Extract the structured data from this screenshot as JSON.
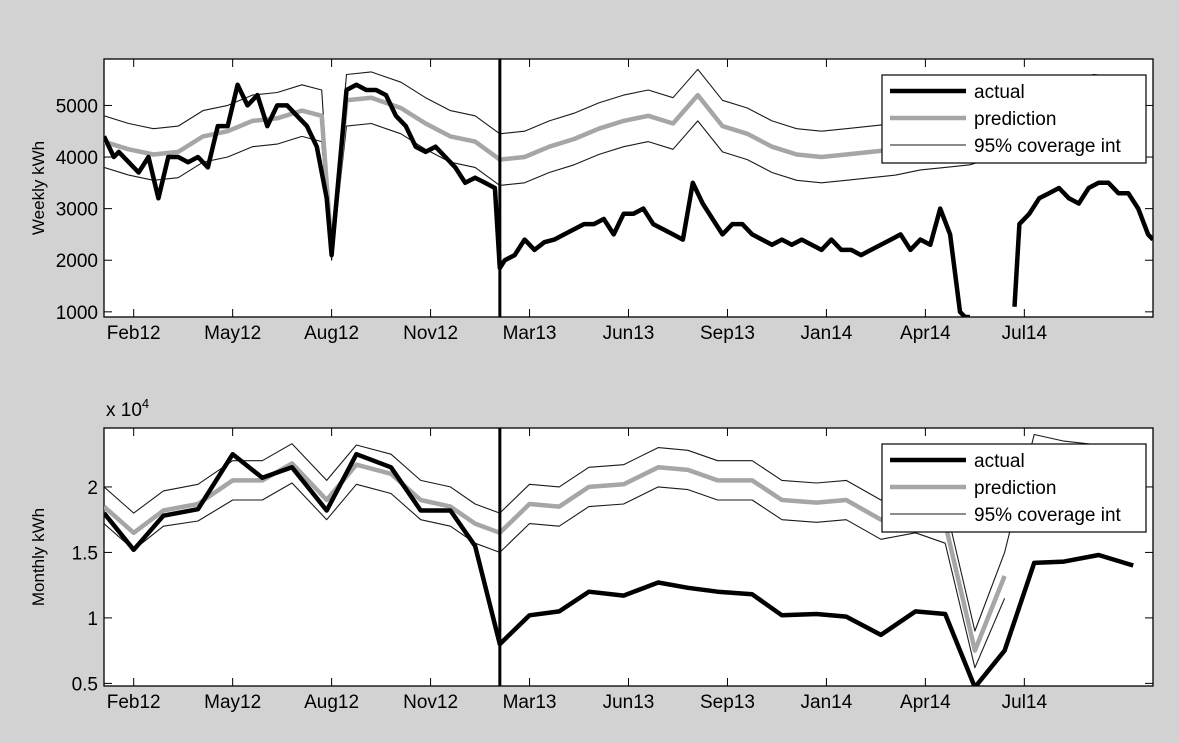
{
  "chart_data": [
    {
      "type": "line",
      "ylabel": "Weekly kWh",
      "ylim": [
        900,
        5900
      ],
      "yticks": [
        1000,
        2000,
        3000,
        4000,
        5000
      ],
      "ytick_labels": [
        "1000",
        "2000",
        "3000",
        "4000",
        "5000"
      ],
      "xlim": [
        0,
        10.6
      ],
      "xticks": [
        0.3,
        1.3,
        2.3,
        3.3,
        4.3,
        5.3,
        6.3,
        7.3,
        8.3,
        9.3
      ],
      "xtick_labels": [
        "Feb12",
        "May12",
        "Aug12",
        "Nov12",
        "Mar13",
        "Jun13",
        "Sep13",
        "Jan14",
        "Apr14",
        "Jul14"
      ],
      "changepoint_x": 4.0,
      "legend": {
        "position": "top-right",
        "entries": [
          "actual",
          "prediction",
          "95% coverage int"
        ]
      },
      "series": [
        {
          "name": "actual",
          "x": [
            0.0,
            0.1,
            0.15,
            0.25,
            0.35,
            0.45,
            0.55,
            0.65,
            0.75,
            0.85,
            0.95,
            1.05,
            1.15,
            1.25,
            1.35,
            1.45,
            1.55,
            1.65,
            1.75,
            1.85,
            1.95,
            2.05,
            2.15,
            2.25,
            2.3,
            2.45,
            2.55,
            2.65,
            2.75,
            2.85,
            2.95,
            3.05,
            3.15,
            3.25,
            3.35,
            3.45,
            3.55,
            3.65,
            3.75,
            3.85,
            3.95,
            4.0,
            4.05,
            4.15,
            4.25,
            4.35,
            4.45,
            4.55,
            4.65,
            4.75,
            4.85,
            4.95,
            5.05,
            5.15,
            5.25,
            5.35,
            5.45,
            5.55,
            5.65,
            5.75,
            5.85,
            5.95,
            6.05,
            6.15,
            6.25,
            6.35,
            6.45,
            6.55,
            6.65,
            6.75,
            6.85,
            6.95,
            7.05,
            7.15,
            7.25,
            7.35,
            7.45,
            7.55,
            7.65,
            7.75,
            7.85,
            7.95,
            8.05,
            8.15,
            8.25,
            8.35,
            8.45,
            8.55,
            8.65,
            8.7,
            8.75,
            null,
            9.2,
            9.25,
            9.35,
            9.45,
            9.55,
            9.65,
            9.75,
            9.85,
            9.95,
            10.05,
            10.15,
            10.25,
            10.35,
            10.45,
            10.55,
            10.6
          ],
          "y": [
            4400,
            4000,
            4100,
            3900,
            3700,
            4000,
            3200,
            4000,
            4000,
            3900,
            4000,
            3800,
            4600,
            4600,
            5400,
            5000,
            5200,
            4600,
            5000,
            5000,
            4800,
            4600,
            4200,
            3200,
            2100,
            5300,
            5400,
            5300,
            5300,
            5200,
            4800,
            4600,
            4200,
            4100,
            4200,
            4000,
            3800,
            3500,
            3600,
            3500,
            3400,
            1850,
            2000,
            2100,
            2400,
            2200,
            2350,
            2400,
            2500,
            2600,
            2700,
            2700,
            2800,
            2500,
            2900,
            2900,
            3000,
            2700,
            2600,
            2500,
            2400,
            3500,
            3100,
            2800,
            2500,
            2700,
            2700,
            2500,
            2400,
            2300,
            2400,
            2300,
            2400,
            2300,
            2200,
            2400,
            2200,
            2200,
            2100,
            2200,
            2300,
            2400,
            2500,
            2200,
            2400,
            2300,
            3000,
            2500,
            1000,
            900,
            900,
            null,
            1100,
            2700,
            2900,
            3200,
            3300,
            3400,
            3200,
            3100,
            3400,
            3500,
            3500,
            3300,
            3300,
            3000,
            2500,
            2400
          ]
        },
        {
          "name": "prediction",
          "x": [
            0.0,
            0.25,
            0.5,
            0.75,
            1.0,
            1.25,
            1.5,
            1.75,
            2.0,
            2.2,
            2.3,
            2.45,
            2.7,
            3.0,
            3.25,
            3.5,
            3.75,
            4.0,
            4.25,
            4.5,
            4.75,
            5.0,
            5.25,
            5.5,
            5.75,
            6.0,
            6.25,
            6.5,
            6.75,
            7.0,
            7.25,
            7.5,
            7.75,
            8.0,
            8.25,
            8.5,
            8.75,
            9.0,
            9.25,
            9.5,
            9.75,
            10.0,
            10.25,
            10.5
          ],
          "y": [
            4300,
            4150,
            4050,
            4100,
            4400,
            4500,
            4700,
            4750,
            4900,
            4800,
            2200,
            5100,
            5150,
            4950,
            4650,
            4400,
            4300,
            3950,
            4000,
            4200,
            4350,
            4550,
            4700,
            4800,
            4650,
            5200,
            4600,
            4450,
            4200,
            4050,
            4000,
            4050,
            4100,
            4150,
            4250,
            4300,
            4350,
            4500,
            4700,
            4800,
            4950,
            5100,
            5050,
            4600
          ]
        },
        {
          "name": "95% coverage int",
          "x": [
            0.0,
            0.25,
            0.5,
            0.75,
            1.0,
            1.25,
            1.5,
            1.75,
            2.0,
            2.2,
            2.3,
            2.45,
            2.7,
            3.0,
            3.25,
            3.5,
            3.75,
            4.0,
            4.25,
            4.5,
            4.75,
            5.0,
            5.25,
            5.5,
            5.75,
            6.0,
            6.25,
            6.5,
            6.75,
            7.0,
            7.25,
            7.5,
            7.75,
            8.0,
            8.25,
            8.5,
            8.75,
            9.0,
            9.25,
            9.5,
            9.75,
            10.0,
            10.25,
            10.5
          ],
          "y": [
            4800,
            4650,
            4550,
            4600,
            4900,
            5000,
            5200,
            5250,
            5400,
            5300,
            2300,
            5600,
            5650,
            5450,
            5150,
            4900,
            4800,
            4450,
            4500,
            4700,
            4850,
            5050,
            5200,
            5300,
            5150,
            5700,
            5100,
            4950,
            4700,
            4550,
            4500,
            4550,
            4600,
            4650,
            4750,
            4800,
            4850,
            5000,
            5200,
            5300,
            5450,
            5600,
            5550,
            5100
          ]
        },
        {
          "name": "95% coverage int",
          "x": [
            0.0,
            0.25,
            0.5,
            0.75,
            1.0,
            1.25,
            1.5,
            1.75,
            2.0,
            2.2,
            2.3,
            2.45,
            2.7,
            3.0,
            3.25,
            3.5,
            3.75,
            4.0,
            4.25,
            4.5,
            4.75,
            5.0,
            5.25,
            5.5,
            5.75,
            6.0,
            6.25,
            6.5,
            6.75,
            7.0,
            7.25,
            7.5,
            7.75,
            8.0,
            8.25,
            8.5,
            8.75,
            9.0,
            9.25,
            9.5,
            9.75,
            10.0,
            10.25,
            10.5
          ],
          "y": [
            3800,
            3650,
            3550,
            3600,
            3900,
            4000,
            4200,
            4250,
            4400,
            4300,
            2000,
            4600,
            4650,
            4450,
            4150,
            3900,
            3800,
            3450,
            3500,
            3700,
            3850,
            4050,
            4200,
            4300,
            4150,
            4700,
            4100,
            3950,
            3700,
            3550,
            3500,
            3550,
            3600,
            3650,
            3750,
            3800,
            3850,
            4000,
            4200,
            4300,
            4450,
            4600,
            4550,
            4100
          ]
        }
      ]
    },
    {
      "type": "line",
      "ylabel": "Monthly kWh",
      "exponent_label": "x 10",
      "exponent_power": "4",
      "ylim": [
        0.48,
        2.45
      ],
      "yticks": [
        0.5,
        1,
        1.5,
        2
      ],
      "ytick_labels": [
        "0.5",
        "1",
        "1.5",
        "2"
      ],
      "xlim": [
        0,
        10.6
      ],
      "xticks": [
        0.3,
        1.3,
        2.3,
        3.3,
        4.3,
        5.3,
        6.3,
        7.3,
        8.3,
        9.3
      ],
      "xtick_labels": [
        "Feb12",
        "May12",
        "Aug12",
        "Nov12",
        "Mar13",
        "Jun13",
        "Sep13",
        "Jan14",
        "Apr14",
        "Jul14"
      ],
      "changepoint_x": 4.0,
      "legend": {
        "position": "top-right",
        "entries": [
          "actual",
          "prediction",
          "95% coverage int"
        ]
      },
      "series": [
        {
          "name": "actual",
          "x": [
            0.0,
            0.3,
            0.6,
            0.95,
            1.3,
            1.6,
            1.9,
            2.25,
            2.55,
            2.9,
            3.2,
            3.5,
            3.75,
            4.0,
            4.3,
            4.6,
            4.9,
            5.25,
            5.6,
            5.9,
            6.2,
            6.55,
            6.85,
            7.2,
            7.5,
            7.85,
            8.2,
            8.5,
            8.8,
            9.1,
            9.4,
            9.7,
            10.05,
            10.4
          ],
          "y": [
            1.8,
            1.52,
            1.78,
            1.83,
            2.25,
            2.07,
            2.15,
            1.82,
            2.25,
            2.15,
            1.82,
            1.82,
            1.55,
            0.8,
            1.02,
            1.05,
            1.2,
            1.17,
            1.27,
            1.23,
            1.2,
            1.18,
            1.02,
            1.03,
            1.01,
            0.87,
            1.05,
            1.03,
            0.47,
            0.75,
            1.42,
            1.43,
            1.48,
            1.4
          ]
        },
        {
          "name": "prediction",
          "x": [
            0.0,
            0.3,
            0.6,
            0.95,
            1.3,
            1.6,
            1.9,
            2.25,
            2.55,
            2.9,
            3.2,
            3.5,
            3.75,
            4.0,
            4.3,
            4.6,
            4.9,
            5.25,
            5.6,
            5.9,
            6.2,
            6.55,
            6.85,
            7.2,
            7.5,
            7.85,
            8.2,
            8.5,
            8.8,
            9.1
          ],
          "y": [
            1.85,
            1.65,
            1.82,
            1.87,
            2.05,
            2.05,
            2.18,
            1.9,
            2.17,
            2.1,
            1.9,
            1.85,
            1.72,
            1.65,
            1.87,
            1.85,
            2.0,
            2.02,
            2.15,
            2.13,
            2.05,
            2.05,
            1.9,
            1.88,
            1.9,
            1.75,
            1.8,
            1.72,
            0.75,
            1.32
          ]
        },
        {
          "name": "95% coverage int",
          "x": [
            0.0,
            0.3,
            0.6,
            0.95,
            1.3,
            1.6,
            1.9,
            2.25,
            2.55,
            2.9,
            3.2,
            3.5,
            3.75,
            4.0,
            4.3,
            4.6,
            4.9,
            5.25,
            5.6,
            5.9,
            6.2,
            6.55,
            6.85,
            7.2,
            7.5,
            7.85,
            8.2,
            8.5,
            8.8,
            9.1,
            9.4,
            9.7,
            10.05,
            10.4
          ],
          "y": [
            2.0,
            1.8,
            1.97,
            2.02,
            2.2,
            2.2,
            2.33,
            2.05,
            2.32,
            2.25,
            2.05,
            2.0,
            1.87,
            1.8,
            2.02,
            2.0,
            2.15,
            2.17,
            2.3,
            2.28,
            2.2,
            2.2,
            2.05,
            2.03,
            2.05,
            1.9,
            1.95,
            1.87,
            0.9,
            1.5,
            2.4,
            2.35,
            2.32,
            2.3
          ]
        },
        {
          "name": "95% coverage int",
          "x": [
            0.0,
            0.3,
            0.6,
            0.95,
            1.3,
            1.6,
            1.9,
            2.25,
            2.55,
            2.9,
            3.2,
            3.5,
            3.75,
            4.0,
            4.3,
            4.6,
            4.9,
            5.25,
            5.6,
            5.9,
            6.2,
            6.55,
            6.85,
            7.2,
            7.5,
            7.85,
            8.2,
            8.5,
            8.8,
            9.1
          ],
          "y": [
            1.72,
            1.52,
            1.7,
            1.74,
            1.9,
            1.9,
            2.03,
            1.75,
            2.02,
            1.95,
            1.75,
            1.7,
            1.57,
            1.5,
            1.72,
            1.7,
            1.85,
            1.87,
            2.0,
            1.98,
            1.9,
            1.9,
            1.75,
            1.73,
            1.75,
            1.6,
            1.65,
            1.57,
            0.62,
            1.15
          ]
        }
      ]
    }
  ]
}
